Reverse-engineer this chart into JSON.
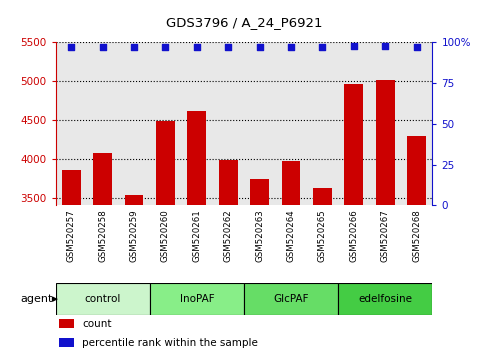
{
  "title": "GDS3796 / A_24_P6921",
  "samples": [
    "GSM520257",
    "GSM520258",
    "GSM520259",
    "GSM520260",
    "GSM520261",
    "GSM520262",
    "GSM520263",
    "GSM520264",
    "GSM520265",
    "GSM520266",
    "GSM520267",
    "GSM520268"
  ],
  "counts": [
    3860,
    4070,
    3530,
    4490,
    4610,
    3990,
    3740,
    3970,
    3620,
    4960,
    5010,
    4300
  ],
  "percentile_ranks": [
    97,
    97,
    97,
    97,
    97,
    97,
    97,
    97,
    97,
    98,
    98,
    97
  ],
  "ylim_left": [
    3400,
    5500
  ],
  "ylim_right": [
    0,
    100
  ],
  "yticks_left": [
    3500,
    4000,
    4500,
    5000,
    5500
  ],
  "yticks_right": [
    0,
    25,
    50,
    75,
    100
  ],
  "bar_color": "#cc0000",
  "dot_color": "#1111cc",
  "bar_width": 0.6,
  "agent_groups": [
    {
      "label": "control",
      "start": 0,
      "end": 3,
      "color": "#ccf5cc"
    },
    {
      "label": "InoPAF",
      "start": 3,
      "end": 6,
      "color": "#88ee88"
    },
    {
      "label": "GlcPAF",
      "start": 6,
      "end": 9,
      "color": "#66dd66"
    },
    {
      "label": "edelfosine",
      "start": 9,
      "end": 12,
      "color": "#44cc44"
    }
  ],
  "legend_items": [
    {
      "label": "count",
      "color": "#cc0000"
    },
    {
      "label": "percentile rank within the sample",
      "color": "#1111cc"
    }
  ],
  "tick_color_left": "#cc0000",
  "tick_color_right": "#1111cc",
  "plot_bgcolor": "#e8e8e8",
  "xtick_bgcolor": "#cccccc"
}
